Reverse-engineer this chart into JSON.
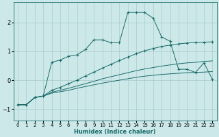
{
  "xlabel": "Humidex (Indice chaleur)",
  "bg_color": "#cce8e8",
  "grid_color": "#aacccc",
  "line_color": "#1a6b6b",
  "xlim": [
    -0.5,
    23.5
  ],
  "ylim": [
    -1.4,
    2.7
  ],
  "x_ticks": [
    0,
    1,
    2,
    3,
    4,
    5,
    6,
    7,
    8,
    9,
    10,
    11,
    12,
    13,
    14,
    15,
    16,
    17,
    18,
    19,
    20,
    21,
    22,
    23
  ],
  "y_ticks": [
    -1,
    0,
    1,
    2
  ],
  "series": [
    {
      "x": [
        0,
        1,
        2,
        3,
        4,
        5,
        6,
        7,
        8,
        9,
        10,
        11,
        12,
        13,
        14,
        15,
        16,
        17,
        18,
        19,
        20,
        21,
        22,
        23
      ],
      "y": [
        -0.85,
        -0.85,
        -0.6,
        -0.55,
        -0.45,
        -0.4,
        -0.35,
        -0.28,
        -0.22,
        -0.16,
        -0.1,
        -0.05,
        0.0,
        0.05,
        0.1,
        0.14,
        0.17,
        0.2,
        0.22,
        0.24,
        0.26,
        0.27,
        0.28,
        0.3
      ],
      "marker": false
    },
    {
      "x": [
        0,
        1,
        2,
        3,
        4,
        5,
        6,
        7,
        8,
        9,
        10,
        11,
        12,
        13,
        14,
        15,
        16,
        17,
        18,
        19,
        20,
        21,
        22,
        23
      ],
      "y": [
        -0.85,
        -0.85,
        -0.6,
        -0.55,
        -0.42,
        -0.35,
        -0.28,
        -0.2,
        -0.12,
        -0.04,
        0.05,
        0.12,
        0.19,
        0.26,
        0.33,
        0.39,
        0.44,
        0.49,
        0.53,
        0.57,
        0.6,
        0.62,
        0.65,
        0.67
      ],
      "marker": false
    },
    {
      "x": [
        0,
        1,
        2,
        3,
        4,
        5,
        6,
        7,
        8,
        9,
        10,
        11,
        12,
        13,
        14,
        15,
        16,
        17,
        18,
        19,
        20,
        21,
        22,
        23
      ],
      "y": [
        -0.85,
        -0.85,
        -0.6,
        -0.55,
        -0.35,
        -0.25,
        -0.12,
        0.0,
        0.15,
        0.28,
        0.42,
        0.55,
        0.68,
        0.8,
        0.92,
        1.02,
        1.1,
        1.17,
        1.22,
        1.26,
        1.29,
        1.31,
        1.32,
        1.33
      ],
      "marker": true
    },
    {
      "x": [
        0,
        1,
        2,
        3,
        4,
        5,
        6,
        7,
        8,
        9,
        10,
        11,
        12,
        13,
        14,
        15,
        16,
        17,
        18,
        19,
        20,
        21,
        22,
        23
      ],
      "y": [
        -0.85,
        -0.85,
        -0.6,
        -0.55,
        0.62,
        0.7,
        0.83,
        0.88,
        1.07,
        1.4,
        1.4,
        1.3,
        1.3,
        2.35,
        2.35,
        2.35,
        2.15,
        1.5,
        1.35,
        0.38,
        0.38,
        0.27,
        0.6,
        0.03
      ],
      "marker": true
    }
  ]
}
